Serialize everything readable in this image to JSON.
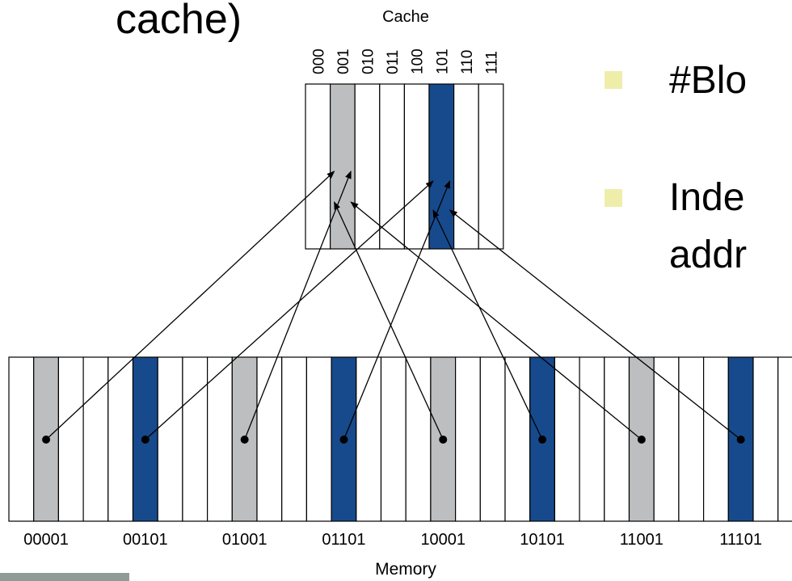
{
  "slide": {
    "title_fragment": "cache)",
    "bullets": [
      {
        "text": "#Blo"
      },
      {
        "text": "Inde"
      },
      {
        "text": "addr"
      }
    ]
  },
  "diagram": {
    "cache_label": "Cache",
    "memory_label": "Memory",
    "cache_indices": [
      "000",
      "001",
      "010",
      "011",
      "100",
      "101",
      "110",
      "111"
    ],
    "memory_block_labels": [
      "00001",
      "00101",
      "01001",
      "01101",
      "10001",
      "10101",
      "11001",
      "11101"
    ],
    "colors": {
      "gray_block": "#bcbec0",
      "blue_block": "#174a8c",
      "border": "#000000",
      "bullet": "#eeeeaa"
    },
    "mappings": [
      {
        "memory": "00001",
        "cache": "001"
      },
      {
        "memory": "00101",
        "cache": "101"
      },
      {
        "memory": "01001",
        "cache": "001"
      },
      {
        "memory": "01101",
        "cache": "101"
      },
      {
        "memory": "10001",
        "cache": "001"
      },
      {
        "memory": "10101",
        "cache": "101"
      },
      {
        "memory": "11001",
        "cache": "001"
      },
      {
        "memory": "11101",
        "cache": "101"
      }
    ]
  }
}
